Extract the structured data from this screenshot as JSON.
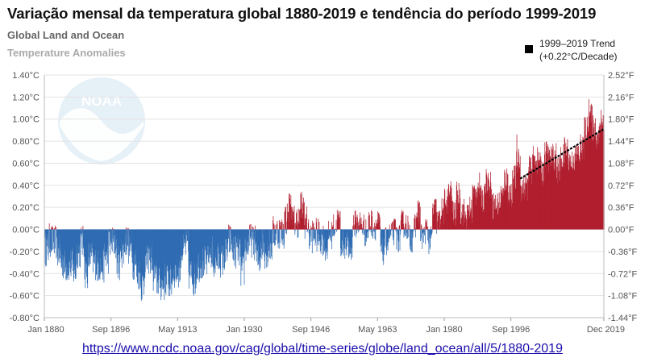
{
  "header": {
    "title": "Variação mensal da temperatura global 1880-2019 e tendência do período 1999-2019",
    "subtitle_1": "Global Land and Ocean",
    "subtitle_2": "Temperature Anomalies"
  },
  "logo": {
    "text": "NOAA"
  },
  "legend": {
    "line1": "1999–2019 Trend",
    "line2": "(+0.22°C/Decade)"
  },
  "source": {
    "url": "https://www.ncdc.noaa.gov/cag/global/time-series/globe/land_ocean/all/5/1880-2019"
  },
  "colors": {
    "positive": "#b01e2e",
    "negative": "#2e6bb2",
    "trend": "#000000"
  },
  "chart_data": {
    "type": "bar",
    "x_range": [
      1880.0,
      2019.92
    ],
    "ylim": [
      -0.8,
      1.4
    ],
    "xlabel": "",
    "ylabel": "",
    "grid": true,
    "legend_position": "top-right",
    "x_ticks": [
      "Jan 1880",
      "Sep 1896",
      "May 1913",
      "Jan 1930",
      "Sep 1946",
      "May 1963",
      "Jan 1980",
      "Sep 1996",
      "Dec 2019"
    ],
    "x_tick_values": [
      1880.0,
      1896.67,
      1913.33,
      1930.0,
      1946.67,
      1963.33,
      1980.0,
      1996.67,
      2019.92
    ],
    "y_ticks_c": [
      "-0.80°C",
      "-0.60°C",
      "-0.40°C",
      "-0.20°C",
      "0.00°C",
      "0.20°C",
      "0.40°C",
      "0.60°C",
      "0.80°C",
      "1.00°C",
      "1.20°C",
      "1.40°C"
    ],
    "y_tick_values_c": [
      -0.8,
      -0.6,
      -0.4,
      -0.2,
      0.0,
      0.2,
      0.4,
      0.6,
      0.8,
      1.0,
      1.2,
      1.4
    ],
    "y_ticks_f": [
      "-1.44°F",
      "-1.08°F",
      "-0.72°F",
      "-0.36°F",
      "0.00°F",
      "0.36°F",
      "0.72°F",
      "1.08°F",
      "1.44°F",
      "1.80°F",
      "2.16°F",
      "2.52°F"
    ],
    "y_tick_values_f": [
      -1.44,
      -1.08,
      -0.72,
      -0.36,
      0.0,
      0.36,
      0.72,
      1.08,
      1.44,
      1.8,
      2.16,
      2.52
    ],
    "series": [
      {
        "points_year_anomaly_c": [
          [
            1880,
            -0.18
          ],
          [
            1881,
            -0.1
          ],
          [
            1882,
            -0.12
          ],
          [
            1883,
            -0.2
          ],
          [
            1884,
            -0.3
          ],
          [
            1885,
            -0.33
          ],
          [
            1886,
            -0.32
          ],
          [
            1887,
            -0.38
          ],
          [
            1888,
            -0.2
          ],
          [
            1889,
            -0.12
          ],
          [
            1890,
            -0.38
          ],
          [
            1891,
            -0.25
          ],
          [
            1892,
            -0.3
          ],
          [
            1893,
            -0.33
          ],
          [
            1894,
            -0.33
          ],
          [
            1895,
            -0.25
          ],
          [
            1896,
            -0.12
          ],
          [
            1897,
            -0.12
          ],
          [
            1898,
            -0.3
          ],
          [
            1899,
            -0.2
          ],
          [
            1900,
            -0.1
          ],
          [
            1901,
            -0.16
          ],
          [
            1902,
            -0.3
          ],
          [
            1903,
            -0.4
          ],
          [
            1904,
            -0.5
          ],
          [
            1905,
            -0.3
          ],
          [
            1906,
            -0.25
          ],
          [
            1907,
            -0.42
          ],
          [
            1908,
            -0.47
          ],
          [
            1909,
            -0.5
          ],
          [
            1910,
            -0.45
          ],
          [
            1911,
            -0.48
          ],
          [
            1912,
            -0.38
          ],
          [
            1913,
            -0.37
          ],
          [
            1914,
            -0.2
          ],
          [
            1915,
            -0.15
          ],
          [
            1916,
            -0.4
          ],
          [
            1917,
            -0.45
          ],
          [
            1918,
            -0.32
          ],
          [
            1919,
            -0.3
          ],
          [
            1920,
            -0.3
          ],
          [
            1921,
            -0.2
          ],
          [
            1922,
            -0.3
          ],
          [
            1923,
            -0.27
          ],
          [
            1924,
            -0.28
          ],
          [
            1925,
            -0.22
          ],
          [
            1926,
            -0.1
          ],
          [
            1927,
            -0.2
          ],
          [
            1928,
            -0.2
          ],
          [
            1929,
            -0.38
          ],
          [
            1930,
            -0.15
          ],
          [
            1931,
            -0.1
          ],
          [
            1932,
            -0.12
          ],
          [
            1933,
            -0.28
          ],
          [
            1934,
            -0.13
          ],
          [
            1935,
            -0.2
          ],
          [
            1936,
            -0.15
          ],
          [
            1937,
            -0.03
          ],
          [
            1938,
            -0.02
          ],
          [
            1939,
            -0.03
          ],
          [
            1940,
            0.1
          ],
          [
            1941,
            0.2
          ],
          [
            1942,
            0.07
          ],
          [
            1943,
            0.08
          ],
          [
            1944,
            0.2
          ],
          [
            1945,
            0.07
          ],
          [
            1946,
            -0.06
          ],
          [
            1947,
            -0.05
          ],
          [
            1948,
            -0.06
          ],
          [
            1949,
            -0.08
          ],
          [
            1950,
            -0.17
          ],
          [
            1951,
            -0.05
          ],
          [
            1952,
            0.02
          ],
          [
            1953,
            0.08
          ],
          [
            1954,
            -0.13
          ],
          [
            1955,
            -0.14
          ],
          [
            1956,
            -0.19
          ],
          [
            1957,
            0.05
          ],
          [
            1958,
            0.06
          ],
          [
            1959,
            0.03
          ],
          [
            1960,
            -0.03
          ],
          [
            1961,
            0.06
          ],
          [
            1962,
            0.03
          ],
          [
            1963,
            0.05
          ],
          [
            1964,
            -0.2
          ],
          [
            1965,
            -0.11
          ],
          [
            1966,
            -0.06
          ],
          [
            1967,
            -0.02
          ],
          [
            1968,
            -0.08
          ],
          [
            1969,
            0.05
          ],
          [
            1970,
            0.03
          ],
          [
            1971,
            -0.08
          ],
          [
            1972,
            0.01
          ],
          [
            1973,
            0.16
          ],
          [
            1974,
            -0.07
          ],
          [
            1975,
            -0.01
          ],
          [
            1976,
            -0.1
          ],
          [
            1977,
            0.18
          ],
          [
            1978,
            0.07
          ],
          [
            1979,
            0.16
          ],
          [
            1980,
            0.26
          ],
          [
            1981,
            0.32
          ],
          [
            1982,
            0.14
          ],
          [
            1983,
            0.31
          ],
          [
            1984,
            0.16
          ],
          [
            1985,
            0.12
          ],
          [
            1986,
            0.18
          ],
          [
            1987,
            0.32
          ],
          [
            1988,
            0.39
          ],
          [
            1989,
            0.27
          ],
          [
            1990,
            0.45
          ],
          [
            1991,
            0.4
          ],
          [
            1992,
            0.22
          ],
          [
            1993,
            0.23
          ],
          [
            1994,
            0.31
          ],
          [
            1995,
            0.45
          ],
          [
            1996,
            0.33
          ],
          [
            1997,
            0.46
          ],
          [
            1998,
            0.61
          ],
          [
            1999,
            0.38
          ],
          [
            2000,
            0.39
          ],
          [
            2001,
            0.54
          ],
          [
            2002,
            0.63
          ],
          [
            2003,
            0.62
          ],
          [
            2004,
            0.53
          ],
          [
            2005,
            0.68
          ],
          [
            2006,
            0.64
          ],
          [
            2007,
            0.66
          ],
          [
            2008,
            0.54
          ],
          [
            2009,
            0.65
          ],
          [
            2010,
            0.72
          ],
          [
            2011,
            0.61
          ],
          [
            2012,
            0.64
          ],
          [
            2013,
            0.68
          ],
          [
            2014,
            0.75
          ],
          [
            2015,
            0.9
          ],
          [
            2016,
            1.01
          ],
          [
            2017,
            0.92
          ],
          [
            2018,
            0.85
          ],
          [
            2019,
            0.98
          ]
        ]
      },
      {
        "name": "1999–2019 Trend",
        "type": "line",
        "points_year_anomaly_c": [
          [
            1999.0,
            0.46
          ],
          [
            2019.92,
            0.91
          ]
        ]
      }
    ]
  }
}
